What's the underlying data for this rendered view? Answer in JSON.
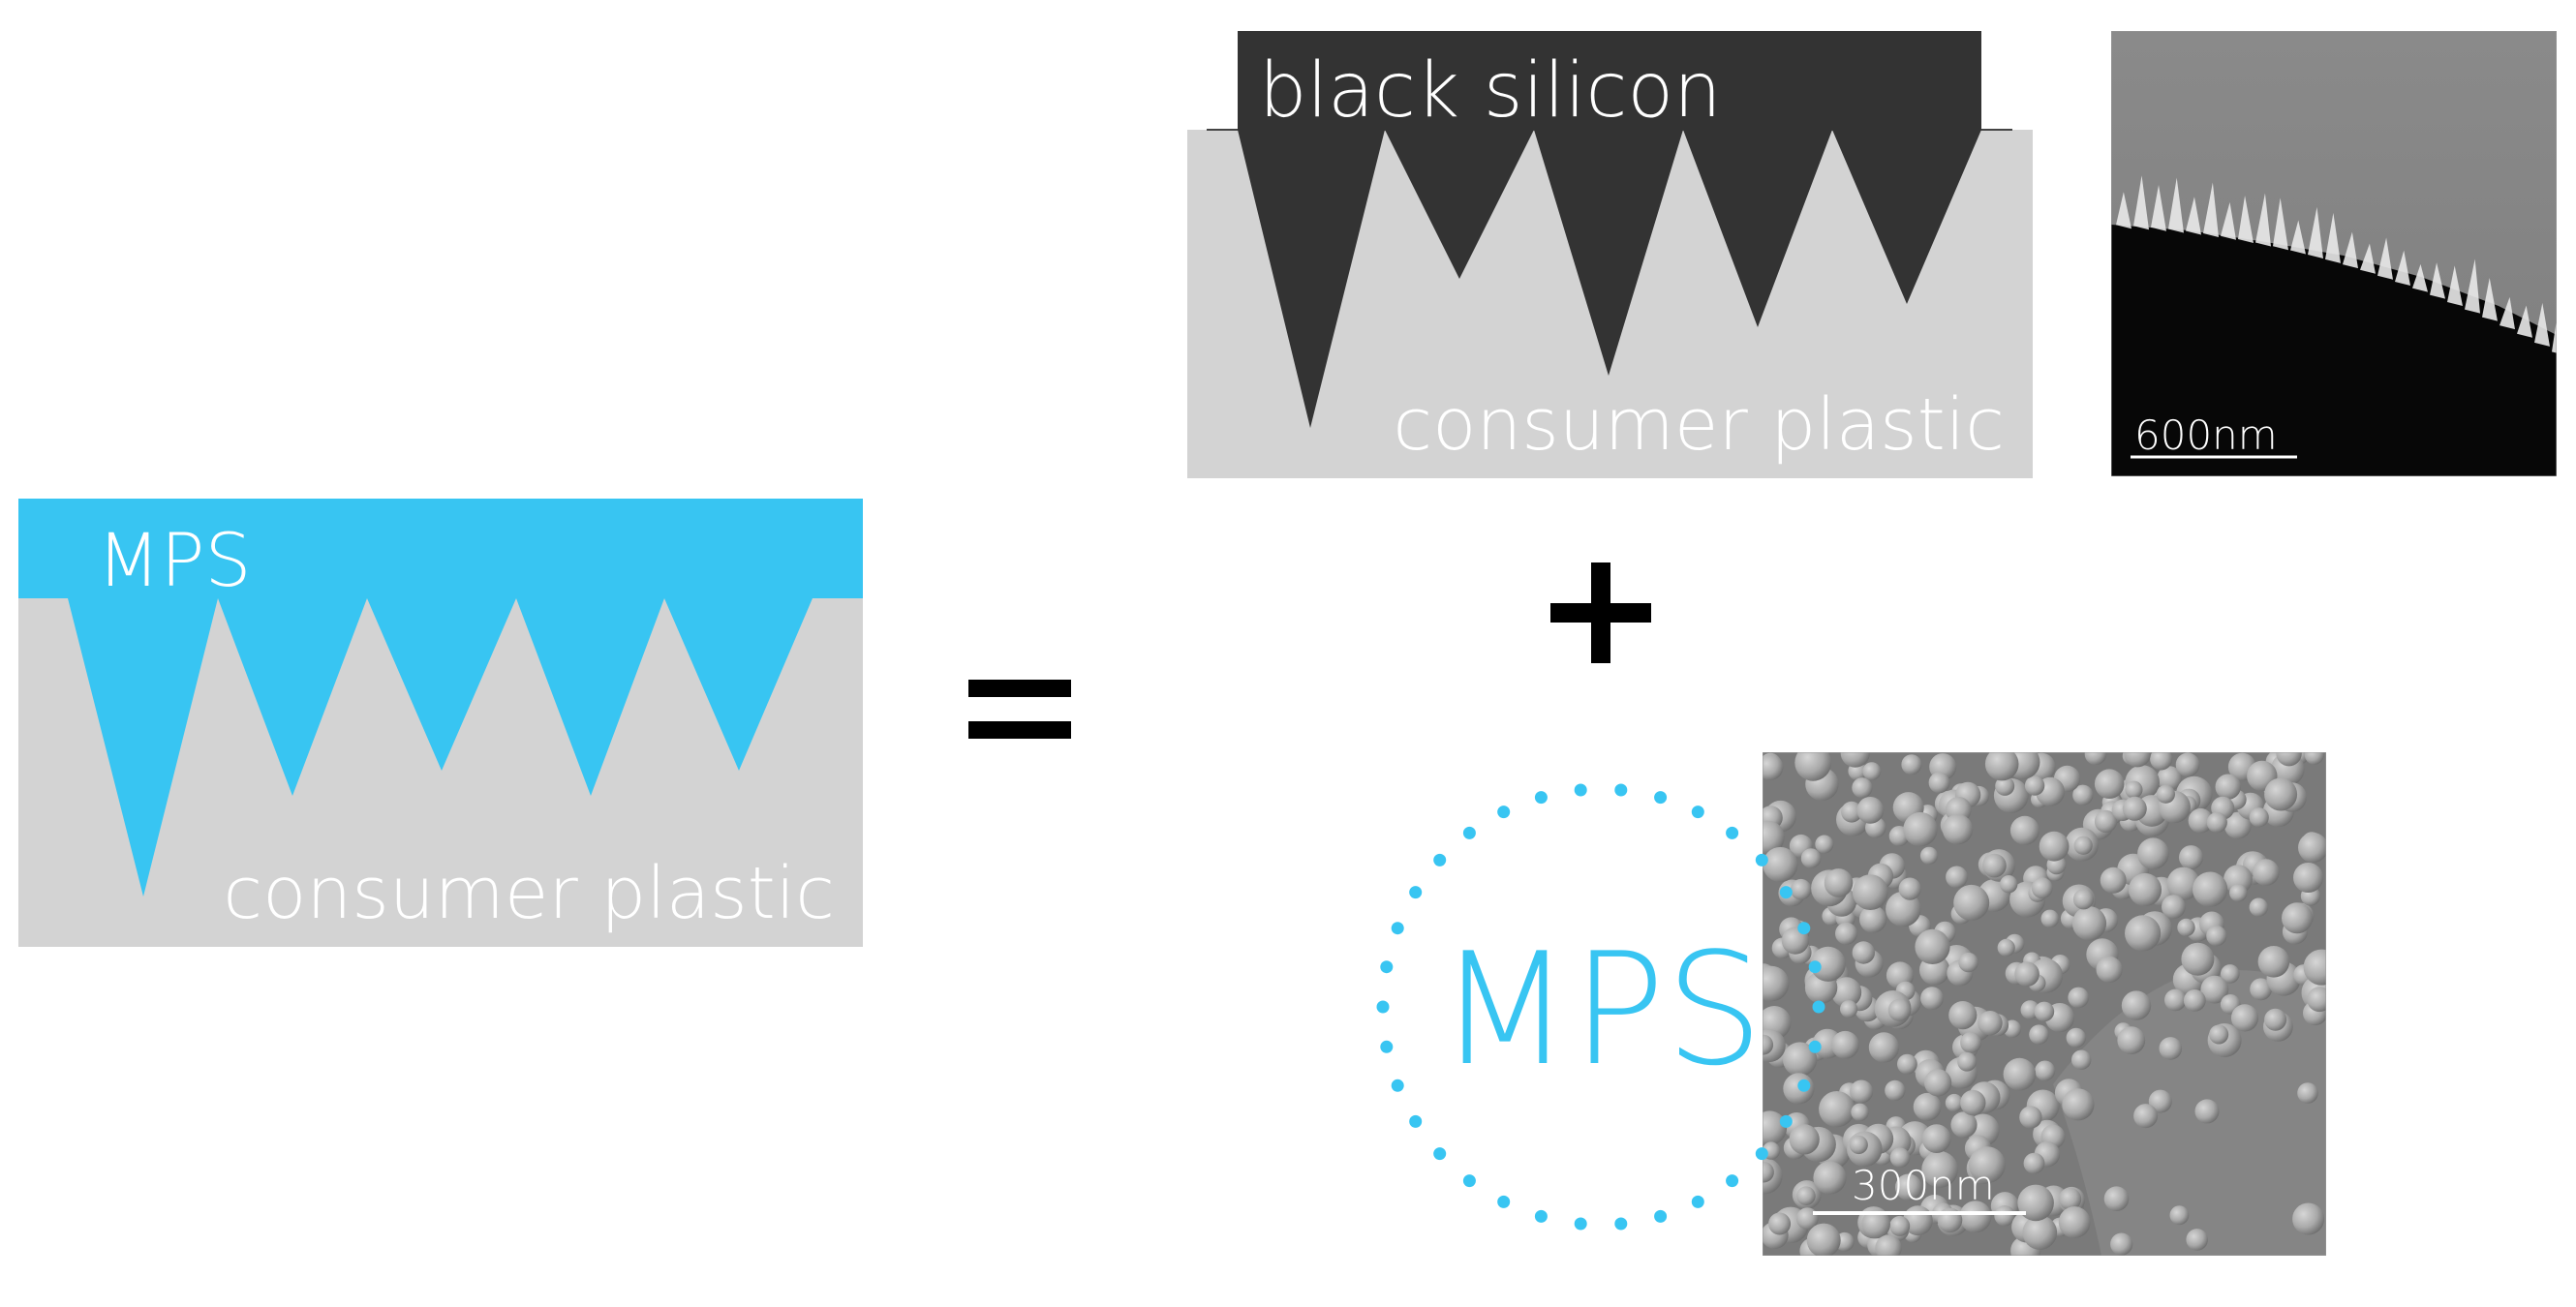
{
  "composite_panel": {
    "layer_label": "MPS",
    "substrate_label": "consumer plastic"
  },
  "equals_symbol": "=",
  "plus_symbol": "+",
  "black_silicon_panel": {
    "layer_label": "black silicon",
    "substrate_label": "consumer plastic"
  },
  "sem_black_silicon": {
    "scale_label": "600nm"
  },
  "mps_panel": {
    "circle_label": "MPS"
  },
  "sem_mps": {
    "scale_label": "300nm"
  },
  "colors": {
    "mps_blue": "#38c5f2",
    "plastic_grey": "#d3d3d3",
    "silicon_dark": "#333333",
    "sem_background": "#7a7a7a"
  }
}
